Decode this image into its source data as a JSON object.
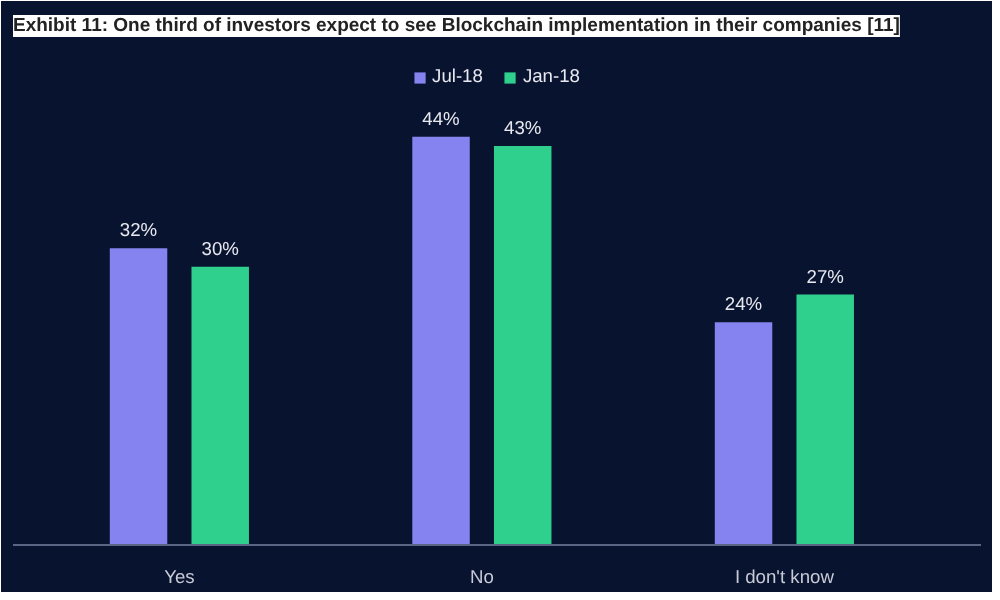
{
  "chart_data": {
    "type": "bar",
    "title": "Exhibit 11: One third of investors expect to see Blockchain implementation in their companies [11]",
    "categories": [
      "Yes",
      "No",
      "I don't know"
    ],
    "series": [
      {
        "name": "Jul-18",
        "color": "#8583f0",
        "values": [
          32,
          44,
          24
        ],
        "value_labels": [
          "32%",
          "44%",
          "24%"
        ]
      },
      {
        "name": "Jan-18",
        "color": "#2fd08e",
        "values": [
          30,
          43,
          27
        ],
        "value_labels": [
          "30%",
          "43%",
          "27%"
        ]
      }
    ],
    "legend": "top",
    "grid": false
  }
}
